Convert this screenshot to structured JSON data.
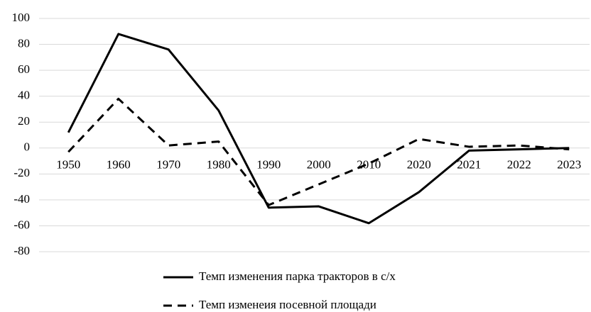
{
  "chart_data": {
    "type": "line",
    "categories": [
      "1950",
      "1960",
      "1970",
      "1980",
      "1990",
      "2000",
      "2010",
      "2020",
      "2021",
      "2022",
      "2023"
    ],
    "series": [
      {
        "name": "Темп изменения парка тракторов в с/х",
        "color": "#000000",
        "line_style": "solid",
        "values": [
          12,
          88,
          76,
          29,
          -46,
          -45,
          -58,
          -34,
          -2,
          -1,
          0
        ]
      },
      {
        "name": "Темп изменеия посевной площади",
        "color": "#000000",
        "line_style": "dashed",
        "values": [
          -3,
          38,
          2,
          5,
          -44,
          -28,
          -12,
          7,
          1,
          2,
          -1
        ]
      }
    ],
    "ylim": [
      -80,
      100
    ],
    "yticks": [
      -80,
      -60,
      -40,
      -20,
      0,
      20,
      40,
      60,
      80,
      100
    ],
    "grid": true,
    "legend": "bottom"
  }
}
